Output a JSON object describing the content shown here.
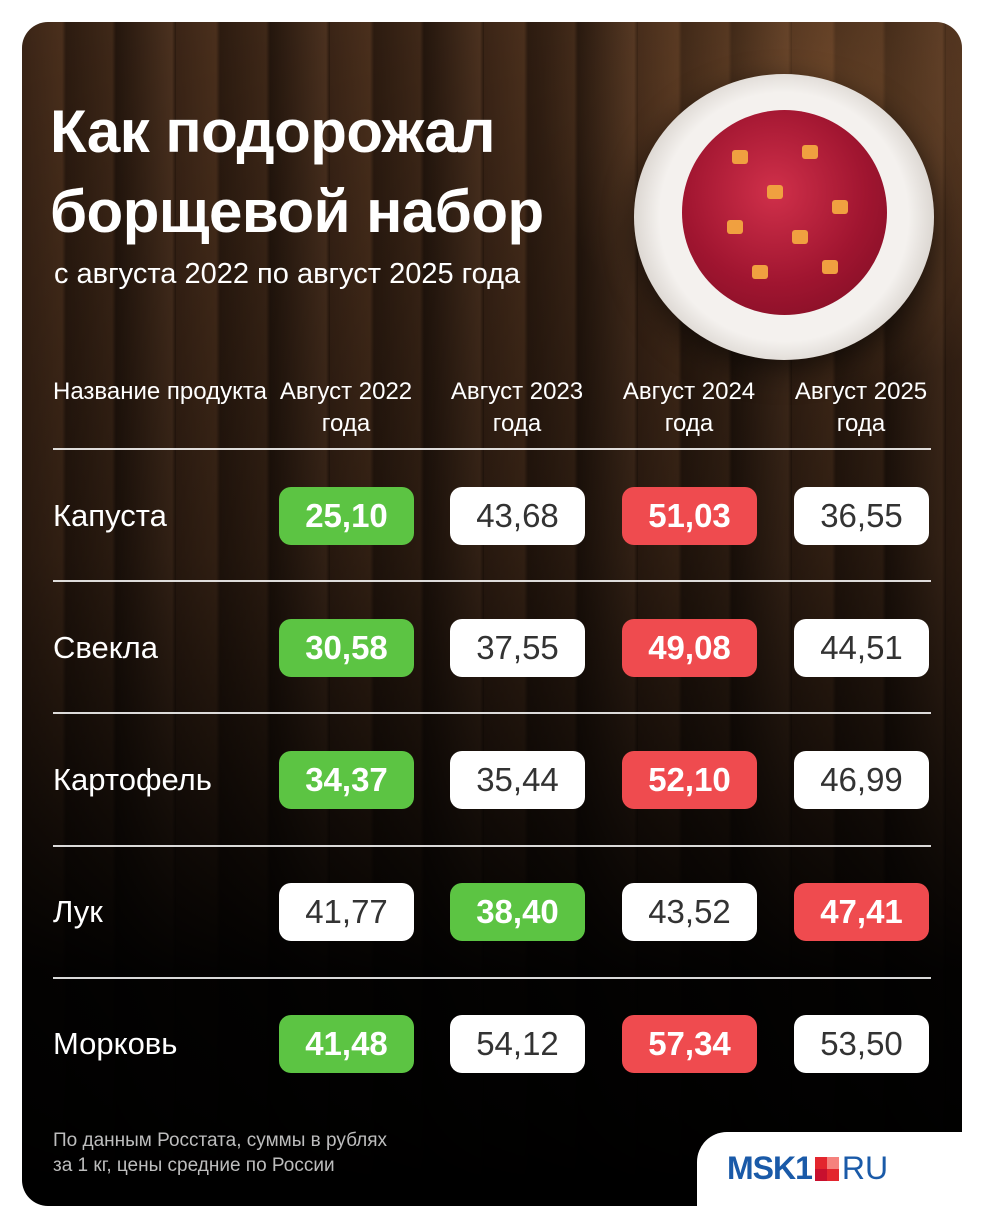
{
  "title_line1": "Как подорожал",
  "title_line2": "борщевой набор",
  "subtitle": "с августа 2022 по август 2025 года",
  "chart_data": {
    "type": "table",
    "columns": [
      "Название продукта",
      "Август 2022 года",
      "Август 2023 года",
      "Август 2024 года",
      "Август 2025 года"
    ],
    "rows": [
      {
        "product": "Капуста",
        "values": [
          "25,10",
          "43,68",
          "51,03",
          "36,55"
        ],
        "highlight": [
          "min",
          "normal",
          "max",
          "normal"
        ]
      },
      {
        "product": "Свекла",
        "values": [
          "30,58",
          "37,55",
          "49,08",
          "44,51"
        ],
        "highlight": [
          "min",
          "normal",
          "max",
          "normal"
        ]
      },
      {
        "product": "Картофель",
        "values": [
          "34,37",
          "35,44",
          "52,10",
          "46,99"
        ],
        "highlight": [
          "min",
          "normal",
          "max",
          "normal"
        ]
      },
      {
        "product": "Лук",
        "values": [
          "41,77",
          "38,40",
          "43,52",
          "47,41"
        ],
        "highlight": [
          "normal",
          "min",
          "normal",
          "max"
        ]
      },
      {
        "product": "Морковь",
        "values": [
          "41,48",
          "54,12",
          "57,34",
          "53,50"
        ],
        "highlight": [
          "min",
          "normal",
          "max",
          "normal"
        ]
      }
    ],
    "colors": {
      "min": "#5cc443",
      "max": "#ef4b4f",
      "normal": "#ffffff"
    }
  },
  "footnote_line1": "По данным Росстата, суммы в рублях",
  "footnote_line2": "за 1 кг, цены средние по России",
  "logo": "MSK1.RU",
  "logo_left": "MSK1",
  "logo_right": "RU"
}
